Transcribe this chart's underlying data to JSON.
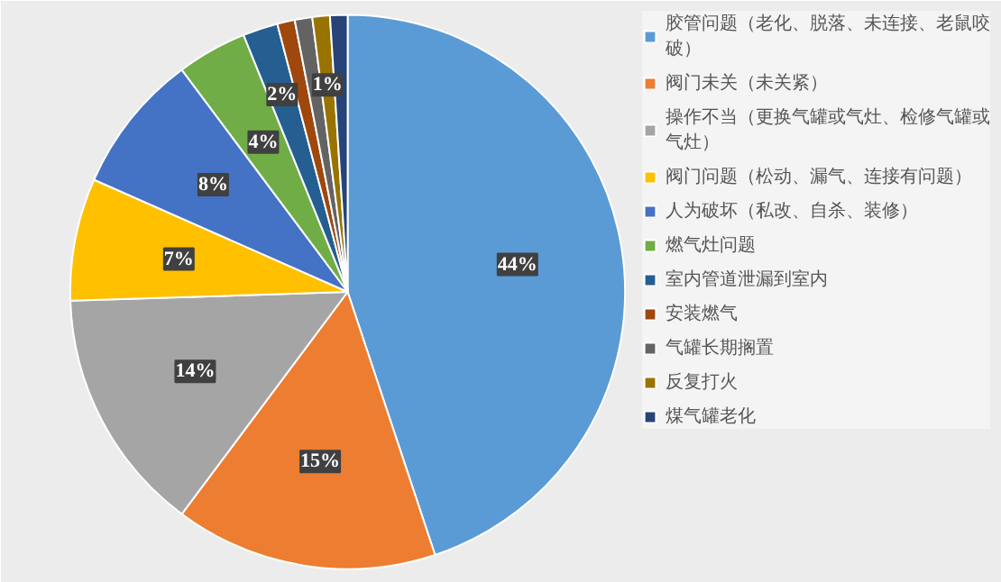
{
  "chart_data": {
    "type": "pie",
    "categories": [
      "胶管问题（老化、脱落、未连接、老鼠咬破）",
      "阀门未关（未关紧）",
      "操作不当（更换气罐或气灶、检修气罐或气灶）",
      "阀门问题（松动、漏气、连接有问题）",
      "人为破坏（私改、自杀、装修）",
      "燃气灶问题",
      "室内管道泄漏到室内",
      "安装燃气",
      "气罐长期搁置",
      "反复打火",
      "煤气罐老化"
    ],
    "values": [
      44,
      15,
      14,
      7,
      8,
      4,
      2,
      1,
      1,
      1,
      1
    ],
    "colors": [
      "#5b9bd5",
      "#ed7d31",
      "#a5a5a5",
      "#ffc000",
      "#4472c4",
      "#70ad47",
      "#255e91",
      "#9e480e",
      "#636363",
      "#997300",
      "#264478"
    ],
    "value_labels": [
      "44%",
      "15%",
      "14%",
      "7%",
      "8%",
      "4%",
      "2%",
      null,
      null,
      "1%",
      null
    ],
    "legend": "right"
  }
}
